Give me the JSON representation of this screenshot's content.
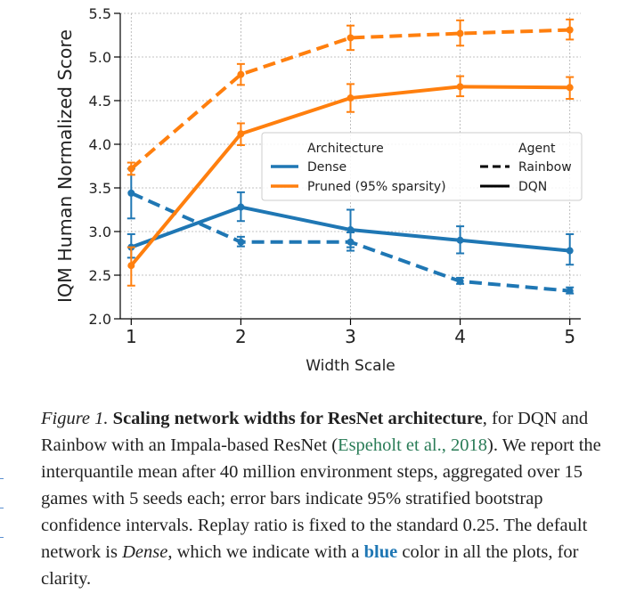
{
  "chart_data": {
    "type": "line",
    "xlabel": "Width Scale",
    "ylabel": "IQM Human Normalized Score",
    "x": [
      1,
      2,
      3,
      4,
      5
    ],
    "xlim": [
      0.9,
      5.1
    ],
    "ylim": [
      2.0,
      5.5
    ],
    "xticks": [
      "1",
      "2",
      "3",
      "4",
      "5"
    ],
    "yticks": [
      "2.0",
      "2.5",
      "3.0",
      "3.5",
      "4.0",
      "4.5",
      "5.0",
      "5.5"
    ],
    "grid": true,
    "series": [
      {
        "name": "Dense / Rainbow",
        "architecture": "Dense",
        "agent": "Rainbow",
        "color": "#1f77b4",
        "linestyle": "dashed",
        "values": [
          3.44,
          2.88,
          2.88,
          2.43,
          2.32
        ],
        "err_low": [
          3.15,
          2.83,
          2.78,
          2.4,
          2.29
        ],
        "err_high": [
          3.72,
          2.94,
          2.99,
          2.47,
          2.36
        ]
      },
      {
        "name": "Dense / DQN",
        "architecture": "Dense",
        "agent": "DQN",
        "color": "#1f77b4",
        "linestyle": "solid",
        "values": [
          2.82,
          3.28,
          3.02,
          2.9,
          2.78
        ],
        "err_low": [
          2.7,
          3.12,
          2.82,
          2.75,
          2.62
        ],
        "err_high": [
          2.97,
          3.45,
          3.25,
          3.06,
          2.97
        ]
      },
      {
        "name": "Pruned / Rainbow",
        "architecture": "Pruned (95% sparsity)",
        "agent": "Rainbow",
        "color": "#ff7f0e",
        "linestyle": "dashed",
        "values": [
          3.72,
          4.8,
          5.22,
          5.27,
          5.31
        ],
        "err_low": [
          3.65,
          4.68,
          5.08,
          5.13,
          5.2
        ],
        "err_high": [
          3.79,
          4.92,
          5.36,
          5.42,
          5.43
        ]
      },
      {
        "name": "Pruned / DQN",
        "architecture": "Pruned (95% sparsity)",
        "agent": "DQN",
        "color": "#ff7f0e",
        "linestyle": "solid",
        "values": [
          2.61,
          4.12,
          4.53,
          4.66,
          4.65
        ],
        "err_low": [
          2.38,
          3.99,
          4.37,
          4.55,
          4.52
        ],
        "err_high": [
          2.82,
          4.24,
          4.69,
          4.78,
          4.77
        ]
      }
    ],
    "legend": {
      "placement": "center-right",
      "architecture_title": "Architecture",
      "architecture_items": [
        {
          "label": "Dense",
          "color": "#1f77b4"
        },
        {
          "label": "Pruned (95% sparsity)",
          "color": "#ff7f0e"
        }
      ],
      "agent_title": "Agent",
      "agent_items": [
        {
          "label": "Rainbow",
          "linestyle": "dashed"
        },
        {
          "label": "DQN",
          "linestyle": "solid"
        }
      ]
    }
  },
  "caption": {
    "label": "Figure 1.",
    "title": "Scaling network widths for ResNet architecture",
    "text1": ", for DQN and Rainbow with an Impala-based ResNet (",
    "citation": "Espeholt et al., 2018",
    "text2": "). We report the interquantile mean after 40 million environment steps, aggregated over 15 games with 5 seeds each; error bars indicate 95% stratified bootstrap confidence intervals. Replay ratio is fixed to the standard 0.25. The default network is ",
    "dense_word": "Dense",
    "text3": ", which we indicate with a ",
    "blue_word": "blue",
    "text4": " color in all the plots, for clarity."
  }
}
